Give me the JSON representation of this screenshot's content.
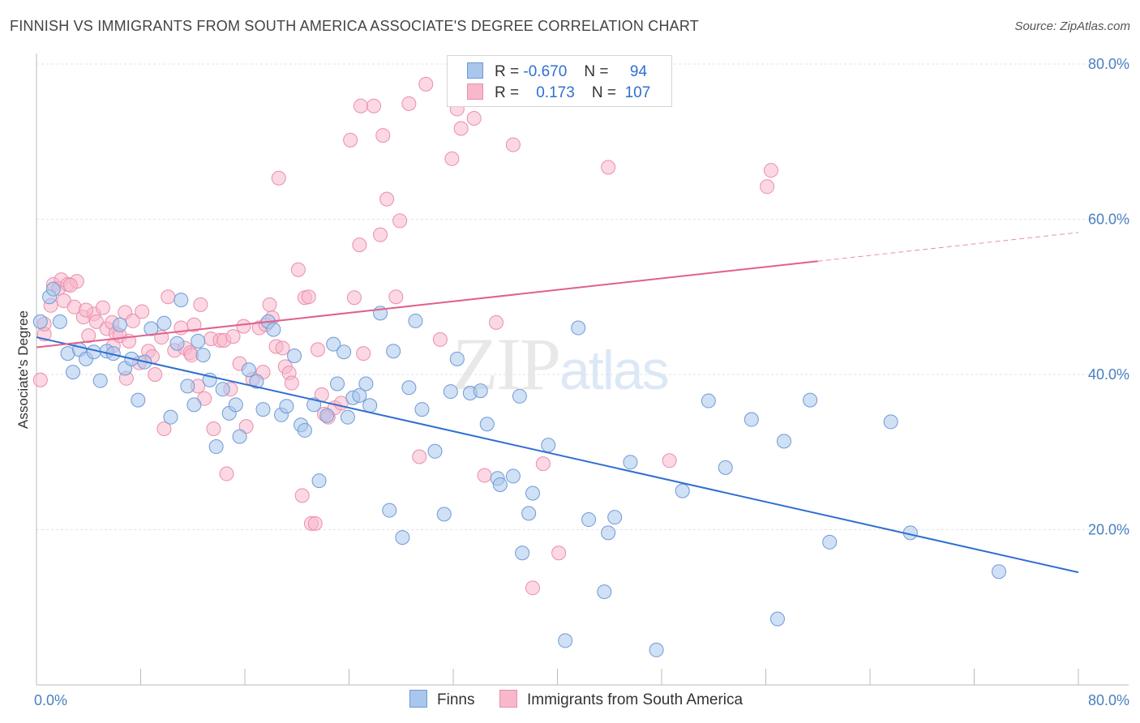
{
  "title": "FINNISH VS IMMIGRANTS FROM SOUTH AMERICA ASSOCIATE'S DEGREE CORRELATION CHART",
  "source": "Source: ZipAtlas.com",
  "watermark": {
    "zip": "ZIP",
    "atlas": "atlas"
  },
  "legend": {
    "rows": [
      {
        "r_label": "R =",
        "r_value": "-0.670",
        "n_label": "N =",
        "n_value": "94"
      },
      {
        "r_label": "R =",
        "r_value": "0.173",
        "n_label": "N =",
        "n_value": "107"
      }
    ]
  },
  "colors": {
    "finns_fill": "#a9c6ec",
    "finns_stroke": "#6e9ad6",
    "finns_line": "#2f6fd0",
    "sa_fill": "#f7b8cc",
    "sa_stroke": "#eb8eaa",
    "sa_line": "#e0608c",
    "grid": "#e3e3e3",
    "tick_label": "#4a7fc1"
  },
  "chart_data": {
    "type": "scatter",
    "title": "FINNISH VS IMMIGRANTS FROM SOUTH AMERICA ASSOCIATE'S DEGREE CORRELATION CHART",
    "xlabel": "",
    "ylabel": "Associate's Degree",
    "xlim": [
      0,
      80
    ],
    "ylim": [
      0,
      80
    ],
    "x_tick_labels": [
      "0.0%",
      "80.0%"
    ],
    "y_ticks": [
      20,
      40,
      60,
      80
    ],
    "y_tick_labels": [
      "20.0%",
      "40.0%",
      "60.0%",
      "80.0%"
    ],
    "grid": true,
    "legend_position": "top-center",
    "series": [
      {
        "name": "Finns",
        "r": -0.67,
        "n": 94,
        "trend": {
          "x": [
            0,
            80
          ],
          "y": [
            44.8,
            14.5
          ]
        },
        "points": [
          [
            0.3,
            46.8
          ],
          [
            1.0,
            50.0
          ],
          [
            1.3,
            51.0
          ],
          [
            1.8,
            46.8
          ],
          [
            2.4,
            42.7
          ],
          [
            2.8,
            40.3
          ],
          [
            3.3,
            43.2
          ],
          [
            3.8,
            42.0
          ],
          [
            4.4,
            42.9
          ],
          [
            4.9,
            39.2
          ],
          [
            5.4,
            43.0
          ],
          [
            5.9,
            42.7
          ],
          [
            6.4,
            46.4
          ],
          [
            6.8,
            40.8
          ],
          [
            7.3,
            42.0
          ],
          [
            7.8,
            36.7
          ],
          [
            8.3,
            41.6
          ],
          [
            8.8,
            45.9
          ],
          [
            9.8,
            46.6
          ],
          [
            10.3,
            34.5
          ],
          [
            10.8,
            44.0
          ],
          [
            11.1,
            49.6
          ],
          [
            11.6,
            38.5
          ],
          [
            12.1,
            36.1
          ],
          [
            12.4,
            44.3
          ],
          [
            12.8,
            42.5
          ],
          [
            13.3,
            39.3
          ],
          [
            13.8,
            30.7
          ],
          [
            14.3,
            38.1
          ],
          [
            14.8,
            35.0
          ],
          [
            15.3,
            36.1
          ],
          [
            15.6,
            32.0
          ],
          [
            16.3,
            40.6
          ],
          [
            16.9,
            39.1
          ],
          [
            17.4,
            35.5
          ],
          [
            17.8,
            46.8
          ],
          [
            18.2,
            45.8
          ],
          [
            18.8,
            34.8
          ],
          [
            19.2,
            35.9
          ],
          [
            19.8,
            42.4
          ],
          [
            20.3,
            33.5
          ],
          [
            20.6,
            32.8
          ],
          [
            21.3,
            36.1
          ],
          [
            21.7,
            26.3
          ],
          [
            22.3,
            34.7
          ],
          [
            22.8,
            43.9
          ],
          [
            23.1,
            38.8
          ],
          [
            23.6,
            42.9
          ],
          [
            23.9,
            34.5
          ],
          [
            24.3,
            37.0
          ],
          [
            24.8,
            37.3
          ],
          [
            25.3,
            38.8
          ],
          [
            25.6,
            36.0
          ],
          [
            26.4,
            47.9
          ],
          [
            27.1,
            22.5
          ],
          [
            27.4,
            43.0
          ],
          [
            28.1,
            19.0
          ],
          [
            28.6,
            38.3
          ],
          [
            29.1,
            46.9
          ],
          [
            29.6,
            35.5
          ],
          [
            30.6,
            30.1
          ],
          [
            31.3,
            22.0
          ],
          [
            31.8,
            37.8
          ],
          [
            32.3,
            42.0
          ],
          [
            33.3,
            37.6
          ],
          [
            34.1,
            37.9
          ],
          [
            34.6,
            33.6
          ],
          [
            35.4,
            26.6
          ],
          [
            35.6,
            25.8
          ],
          [
            36.6,
            26.9
          ],
          [
            37.1,
            37.2
          ],
          [
            37.3,
            17.0
          ],
          [
            37.8,
            22.1
          ],
          [
            38.1,
            24.7
          ],
          [
            39.3,
            30.9
          ],
          [
            40.6,
            5.7
          ],
          [
            41.6,
            46.0
          ],
          [
            42.4,
            21.3
          ],
          [
            43.6,
            12.0
          ],
          [
            43.9,
            19.6
          ],
          [
            44.4,
            21.6
          ],
          [
            45.6,
            28.7
          ],
          [
            47.6,
            4.5
          ],
          [
            49.6,
            25.0
          ],
          [
            51.6,
            36.6
          ],
          [
            52.9,
            28.0
          ],
          [
            54.9,
            34.2
          ],
          [
            56.9,
            8.5
          ],
          [
            57.4,
            31.4
          ],
          [
            59.4,
            36.7
          ],
          [
            60.9,
            18.4
          ],
          [
            65.6,
            33.9
          ],
          [
            67.1,
            19.6
          ],
          [
            73.9,
            14.6
          ]
        ]
      },
      {
        "name": "Immigrants from South America",
        "r": 0.173,
        "n": 107,
        "trend": {
          "x": [
            0,
            60
          ],
          "y": [
            43.5,
            54.6
          ]
        },
        "trend_dashed_to": {
          "x": 80,
          "y": 58.3
        },
        "points": [
          [
            0.3,
            39.3
          ],
          [
            0.6,
            45.2
          ],
          [
            1.1,
            48.9
          ],
          [
            1.3,
            51.6
          ],
          [
            1.7,
            51.1
          ],
          [
            1.9,
            52.2
          ],
          [
            2.1,
            49.5
          ],
          [
            2.4,
            51.6
          ],
          [
            2.9,
            48.7
          ],
          [
            3.1,
            52.0
          ],
          [
            3.6,
            47.4
          ],
          [
            4.0,
            45.0
          ],
          [
            4.4,
            47.8
          ],
          [
            4.6,
            46.8
          ],
          [
            5.1,
            48.6
          ],
          [
            5.4,
            45.9
          ],
          [
            5.8,
            46.7
          ],
          [
            5.9,
            43.7
          ],
          [
            6.1,
            45.3
          ],
          [
            6.4,
            45.0
          ],
          [
            6.8,
            48.0
          ],
          [
            7.1,
            44.3
          ],
          [
            7.4,
            46.9
          ],
          [
            7.9,
            41.5
          ],
          [
            8.1,
            48.1
          ],
          [
            8.6,
            43.0
          ],
          [
            8.9,
            42.3
          ],
          [
            9.1,
            40.0
          ],
          [
            9.6,
            44.8
          ],
          [
            9.8,
            33.0
          ],
          [
            10.1,
            50.0
          ],
          [
            10.6,
            43.1
          ],
          [
            11.1,
            46.0
          ],
          [
            11.4,
            43.4
          ],
          [
            11.8,
            42.8
          ],
          [
            12.1,
            46.4
          ],
          [
            12.4,
            38.5
          ],
          [
            12.6,
            49.0
          ],
          [
            12.9,
            36.9
          ],
          [
            13.4,
            44.6
          ],
          [
            13.6,
            33.0
          ],
          [
            14.1,
            44.4
          ],
          [
            14.4,
            44.4
          ],
          [
            14.6,
            27.2
          ],
          [
            14.9,
            38.1
          ],
          [
            15.1,
            44.9
          ],
          [
            15.6,
            41.4
          ],
          [
            15.9,
            46.2
          ],
          [
            16.1,
            33.3
          ],
          [
            16.6,
            39.4
          ],
          [
            17.1,
            46.0
          ],
          [
            17.4,
            40.3
          ],
          [
            17.6,
            46.4
          ],
          [
            17.9,
            49.0
          ],
          [
            18.1,
            47.3
          ],
          [
            18.4,
            43.6
          ],
          [
            18.9,
            43.4
          ],
          [
            19.1,
            41.0
          ],
          [
            19.4,
            40.2
          ],
          [
            19.6,
            38.9
          ],
          [
            18.6,
            65.3
          ],
          [
            20.1,
            53.5
          ],
          [
            20.4,
            24.4
          ],
          [
            20.6,
            49.9
          ],
          [
            20.9,
            50.0
          ],
          [
            21.1,
            20.8
          ],
          [
            21.4,
            20.8
          ],
          [
            21.6,
            43.2
          ],
          [
            21.9,
            37.4
          ],
          [
            22.1,
            34.9
          ],
          [
            22.4,
            34.5
          ],
          [
            22.9,
            35.7
          ],
          [
            23.4,
            36.3
          ],
          [
            24.1,
            70.2
          ],
          [
            24.4,
            49.9
          ],
          [
            24.8,
            56.7
          ],
          [
            24.9,
            74.6
          ],
          [
            25.1,
            42.7
          ],
          [
            25.9,
            74.6
          ],
          [
            26.4,
            58.0
          ],
          [
            26.6,
            70.8
          ],
          [
            26.9,
            62.6
          ],
          [
            27.6,
            50.0
          ],
          [
            27.9,
            59.8
          ],
          [
            28.6,
            74.9
          ],
          [
            29.4,
            29.4
          ],
          [
            29.9,
            77.4
          ],
          [
            31.0,
            44.5
          ],
          [
            31.9,
            67.8
          ],
          [
            32.3,
            74.2
          ],
          [
            32.6,
            71.7
          ],
          [
            33.6,
            73.0
          ],
          [
            34.4,
            27.0
          ],
          [
            35.3,
            46.7
          ],
          [
            36.6,
            69.6
          ],
          [
            38.1,
            12.5
          ],
          [
            38.9,
            28.5
          ],
          [
            40.1,
            17.0
          ],
          [
            43.9,
            66.7
          ],
          [
            48.6,
            28.9
          ],
          [
            56.1,
            64.2
          ],
          [
            56.4,
            66.3
          ],
          [
            0.6,
            46.5
          ],
          [
            2.6,
            51.5
          ],
          [
            3.8,
            48.3
          ],
          [
            6.9,
            39.5
          ],
          [
            11.9,
            42.5
          ]
        ]
      }
    ]
  },
  "bottom_legend": [
    "Finns",
    "Immigrants from South America"
  ]
}
